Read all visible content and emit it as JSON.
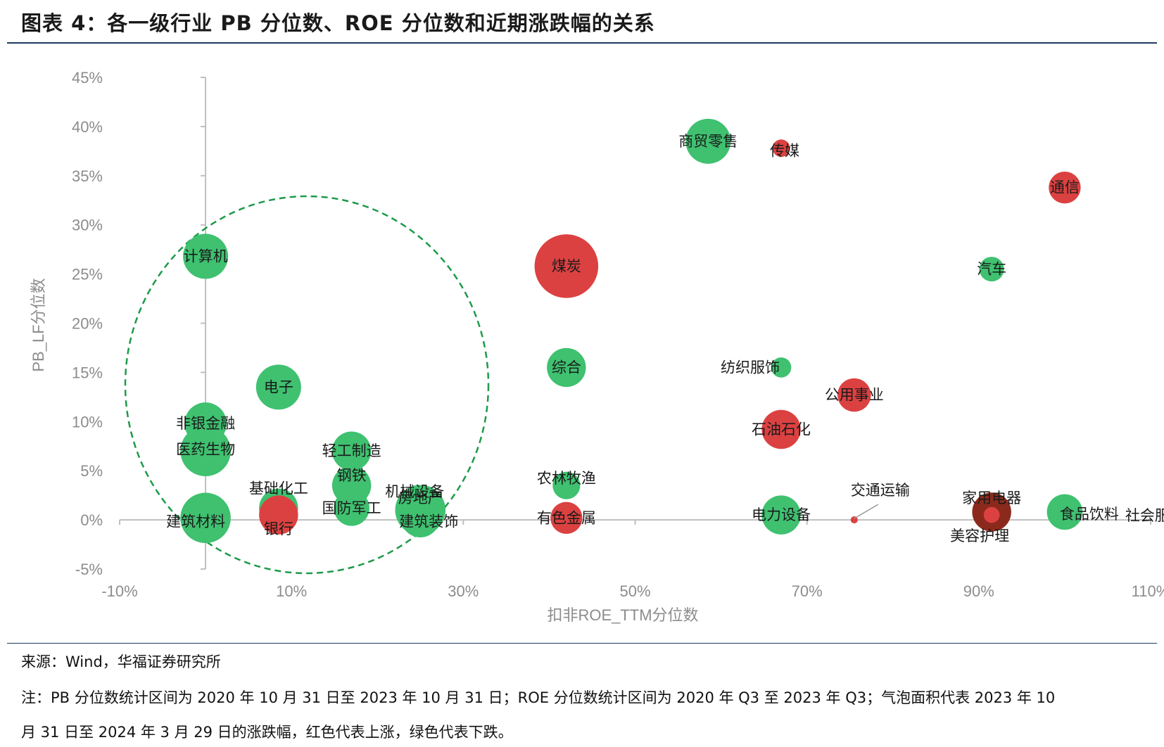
{
  "title": "图表 4：各一级行业 PB 分位数、ROE 分位数和近期涨跌幅的关系",
  "source": "来源：Wind，华福证券研究所",
  "note_line1": "注：PB 分位数统计区间为 2020 年 10 月 31 日至 2023 年 10 月 31 日；ROE 分位数统计区间为 2020 年 Q3 至 2023 年 Q3；气泡面积代表 2023 年 10",
  "note_line2": "月 31 日至 2024 年 3 月 29 日的涨跌幅，红色代表上涨，绿色代表下跌。",
  "colors": {
    "up": "#dc4141",
    "down": "#3fc170",
    "brown": "#8b2a1c",
    "axis": "#bfbfbf",
    "ellipse": "#1d9a4a"
  },
  "chart_data": {
    "type": "scatter",
    "xlabel": "扣非ROE_TTM分位数",
    "ylabel": "PB_LF分位数",
    "xlim": [
      -10,
      110
    ],
    "ylim": [
      -5,
      45
    ],
    "x_ticks": [
      "-10%",
      "10%",
      "30%",
      "50%",
      "70%",
      "90%",
      "110%"
    ],
    "x_tick_values": [
      -10,
      10,
      30,
      50,
      70,
      90,
      110
    ],
    "y_ticks": [
      "-5%",
      "0%",
      "5%",
      "10%",
      "15%",
      "20%",
      "25%",
      "30%",
      "35%",
      "40%",
      "45%"
    ],
    "y_tick_values": [
      -5,
      0,
      5,
      10,
      15,
      20,
      25,
      30,
      35,
      40,
      45
    ],
    "highlight": "dashed green ellipse around low-ROE industries",
    "points": [
      {
        "label": "商贸零售",
        "x": 58.5,
        "y": 38.5,
        "size": 4.0,
        "color": "green"
      },
      {
        "label": "传媒",
        "x": 67.0,
        "y": 37.8,
        "size": 0.6,
        "color": "red"
      },
      {
        "label": "通信",
        "x": 100.0,
        "y": 33.8,
        "size": 2.0,
        "color": "red"
      },
      {
        "label": "计算机",
        "x": 0.0,
        "y": 26.8,
        "size": 4.0,
        "color": "green"
      },
      {
        "label": "煤炭",
        "x": 42.0,
        "y": 25.8,
        "size": 8.0,
        "color": "red"
      },
      {
        "label": "汽车",
        "x": 91.5,
        "y": 25.5,
        "size": 1.2,
        "color": "green"
      },
      {
        "label": "综合",
        "x": 42.0,
        "y": 15.5,
        "size": 3.0,
        "color": "green"
      },
      {
        "label": "纺织服饰",
        "x": 67.0,
        "y": 15.5,
        "size": 0.8,
        "color": "green"
      },
      {
        "label": "电子",
        "x": 8.5,
        "y": 13.5,
        "size": 4.0,
        "color": "green"
      },
      {
        "label": "公用事业",
        "x": 75.5,
        "y": 12.7,
        "size": 2.2,
        "color": "red"
      },
      {
        "label": "非银金融",
        "x": 0.0,
        "y": 9.8,
        "size": 3.5,
        "color": "green"
      },
      {
        "label": "石油石化",
        "x": 67.0,
        "y": 9.2,
        "size": 3.0,
        "color": "red"
      },
      {
        "label": "医药生物",
        "x": 0.0,
        "y": 7.0,
        "size": 5.0,
        "color": "green"
      },
      {
        "label": "轻工制造",
        "x": 17.0,
        "y": 7.0,
        "size": 3.0,
        "color": "green"
      },
      {
        "label": "农林牧渔",
        "x": 42.0,
        "y": 3.5,
        "size": 1.5,
        "color": "green"
      },
      {
        "label": "钢铁",
        "x": 17.0,
        "y": 3.5,
        "size": 3.0,
        "color": "green"
      },
      {
        "label": "机械设备",
        "x": 25.0,
        "y": 1.0,
        "size": 5.0,
        "color": "green"
      },
      {
        "label": "房地产",
        "x": 25.0,
        "y": 1.5,
        "size": 0.5,
        "color": "green"
      },
      {
        "label": "建筑装饰",
        "x": 25.0,
        "y": 0.2,
        "size": 3.0,
        "color": "green"
      },
      {
        "label": "国防军工",
        "x": 17.0,
        "y": 1.2,
        "size": 2.5,
        "color": "green"
      },
      {
        "label": "基础化工",
        "x": 8.5,
        "y": 1.2,
        "size": 3.0,
        "color": "green"
      },
      {
        "label": "银行",
        "x": 8.5,
        "y": 0.5,
        "size": 3.0,
        "color": "red"
      },
      {
        "label": "建筑材料",
        "x": 0.0,
        "y": 0.2,
        "size": 5.0,
        "color": "green"
      },
      {
        "label": "有色金属",
        "x": 42.0,
        "y": 0.2,
        "size": 2.0,
        "color": "red"
      },
      {
        "label": "电力设备",
        "x": 67.0,
        "y": 0.5,
        "size": 3.0,
        "color": "green"
      },
      {
        "label": "交通运输",
        "x": 75.5,
        "y": 0.0,
        "size": 0.1,
        "color": "red"
      },
      {
        "label": "家用电器",
        "x": 91.5,
        "y": 0.8,
        "size": 3.0,
        "color": "brown"
      },
      {
        "label": "美容护理",
        "x": 91.5,
        "y": 0.5,
        "size": 0.5,
        "color": "red"
      },
      {
        "label": "食品饮料",
        "x": 100.0,
        "y": 0.8,
        "size": 2.5,
        "color": "green"
      },
      {
        "label": "社会服务",
        "x": 100.0,
        "y": 0.8,
        "size": 0.5,
        "color": "green"
      }
    ]
  }
}
